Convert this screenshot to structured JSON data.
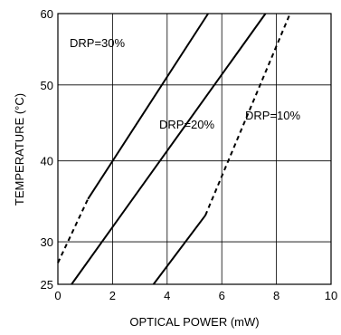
{
  "chart_data": {
    "type": "line",
    "title": "",
    "xlabel": "OPTICAL  POWER (mW)",
    "ylabel": "TEMPERATURE (°C)",
    "xlim": [
      0,
      10
    ],
    "ylim": [
      25,
      60
    ],
    "y_scale": "reciprocal",
    "x_ticks": [
      0,
      2,
      4,
      6,
      8,
      10
    ],
    "y_ticks": [
      25,
      30,
      40,
      50,
      60
    ],
    "grid": true,
    "series": [
      {
        "name": "DRP=30%",
        "label_position": "top-left",
        "points": [
          [
            0,
            27.5
          ],
          [
            1.1,
            35.2
          ],
          [
            5.5,
            60
          ]
        ],
        "dashed_until_x": 1.1
      },
      {
        "name": "DRP=20%",
        "label_position": "middle",
        "points": [
          [
            0.5,
            25
          ],
          [
            7.6,
            60
          ]
        ],
        "dashed_until_x": null
      },
      {
        "name": "DRP=10%",
        "label_position": "right",
        "points": [
          [
            3.5,
            25
          ],
          [
            5.4,
            33.2
          ],
          [
            8.5,
            60
          ]
        ],
        "dashed_until_x": 5.4,
        "dashed_after": true
      }
    ]
  }
}
